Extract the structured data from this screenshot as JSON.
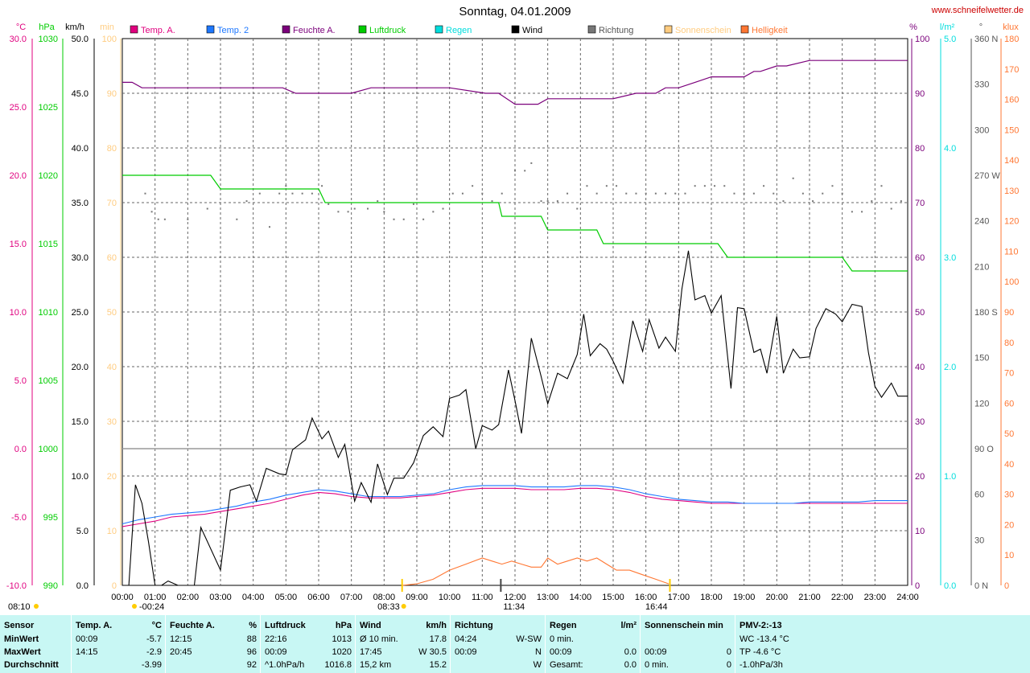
{
  "title": "Sonntag, 04.01.2009",
  "site": "www.schneifelwetter.de",
  "colors": {
    "temp_a": "#e0007f",
    "temp2": "#1e78ff",
    "feuchte": "#7b007b",
    "luftdruck": "#00cc00",
    "regen": "#00dddd",
    "wind": "#000000",
    "richtung": "#777777",
    "sonnenschein": "#ffcc80",
    "helligkeit": "#ff7733"
  },
  "legend": [
    {
      "label": "Temp. A.",
      "color": "#e0007f"
    },
    {
      "label": "Temp. 2",
      "color": "#1e78ff"
    },
    {
      "label": "Feuchte A.",
      "color": "#7b007b"
    },
    {
      "label": "Luftdruck",
      "color": "#00cc00"
    },
    {
      "label": "Regen",
      "color": "#00dddd"
    },
    {
      "label": "Wind",
      "color": "#000000"
    },
    {
      "label": "Richtung",
      "color": "#777777"
    },
    {
      "label": "Sonnenschein",
      "color": "#ffcc80"
    },
    {
      "label": "Helligkeit",
      "color": "#ff7733"
    }
  ],
  "axis_units": {
    "temp": "°C",
    "hpa": "hPa",
    "kmh": "km/h",
    "min": "min",
    "pct": "%",
    "lm2": "l/m²",
    "deg": "°",
    "klux": "klux"
  },
  "axes_left": {
    "temp": [
      "30.0",
      "25.0",
      "20.0",
      "15.0",
      "10.0",
      "5.0",
      "0.0",
      "-5.0",
      "-10.0"
    ],
    "hpa": [
      "1030",
      "1025",
      "1020",
      "1015",
      "1010",
      "1005",
      "1000",
      "995",
      "990"
    ],
    "kmh": [
      "50.0",
      "45.0",
      "40.0",
      "35.0",
      "30.0",
      "25.0",
      "20.0",
      "15.0",
      "10.0",
      "5.0",
      "0.0"
    ],
    "min": [
      "100",
      "90",
      "80",
      "70",
      "60",
      "50",
      "40",
      "30",
      "20",
      "10",
      "0"
    ]
  },
  "axes_right": {
    "pct": [
      "100",
      "90",
      "80",
      "70",
      "60",
      "50",
      "40",
      "30",
      "20",
      "10",
      "0"
    ],
    "lm2": [
      "5.0",
      "4.0",
      "3.0",
      "2.0",
      "1.0",
      "0.0"
    ],
    "deg": [
      "360 N",
      "330",
      "300",
      "270 W",
      "240",
      "210",
      "180 S",
      "150",
      "120",
      "90 O",
      "60",
      "30",
      "0 N"
    ],
    "klux": [
      "180",
      "170",
      "160",
      "150",
      "140",
      "130",
      "120",
      "110",
      "100",
      "90",
      "80",
      "70",
      "60",
      "50",
      "40",
      "30",
      "20",
      "10",
      "0"
    ]
  },
  "x_ticks": [
    "00:00",
    "01:00",
    "02:00",
    "03:00",
    "04:00",
    "05:00",
    "06:00",
    "07:00",
    "08:00",
    "09:00",
    "10:00",
    "11:00",
    "12:00",
    "13:00",
    "14:00",
    "15:00",
    "16:00",
    "17:00",
    "18:00",
    "19:00",
    "20:00",
    "21:00",
    "22:00",
    "23:00",
    "24:00"
  ],
  "markers": {
    "sunrise": "08:33",
    "noon": "11:34",
    "sunset": "16:44",
    "min_marker": "-00:24",
    "daylight": "08:10"
  },
  "chart_data": {
    "type": "line",
    "x_unit": "hour",
    "xlim": [
      0,
      24
    ],
    "series": [
      {
        "name": "Temp. A.",
        "unit": "°C",
        "ylim": [
          -10,
          30
        ],
        "x": [
          0,
          0.5,
          1,
          1.5,
          2,
          2.5,
          3,
          3.5,
          4,
          4.5,
          5,
          5.5,
          6,
          6.5,
          7,
          7.5,
          8,
          8.5,
          9,
          9.5,
          10,
          10.5,
          11,
          11.5,
          12,
          12.5,
          13,
          13.5,
          14,
          14.5,
          15,
          15.5,
          16,
          16.5,
          17,
          17.5,
          18,
          18.5,
          19,
          19.5,
          20,
          20.5,
          21,
          21.5,
          22,
          22.5,
          23,
          23.5,
          24
        ],
        "y": [
          -5.7,
          -5.5,
          -5.3,
          -5.0,
          -4.9,
          -4.8,
          -4.6,
          -4.4,
          -4.2,
          -4.0,
          -3.7,
          -3.4,
          -3.2,
          -3.3,
          -3.5,
          -3.6,
          -3.6,
          -3.6,
          -3.5,
          -3.4,
          -3.2,
          -3.0,
          -2.9,
          -2.9,
          -2.9,
          -3.0,
          -3.0,
          -3.0,
          -2.9,
          -2.9,
          -3.0,
          -3.2,
          -3.5,
          -3.7,
          -3.8,
          -3.9,
          -4.0,
          -4.0,
          -4.0,
          -4.0,
          -4.0,
          -4.0,
          -4.0,
          -4.0,
          -4.0,
          -4.0,
          -4.0,
          -4.0,
          -4.0
        ]
      },
      {
        "name": "Temp. 2",
        "unit": "°C",
        "ylim": [
          -10,
          30
        ],
        "x": [
          0,
          0.5,
          1,
          1.5,
          2,
          2.5,
          3,
          3.5,
          4,
          4.5,
          5,
          5.5,
          6,
          6.5,
          7,
          7.5,
          8,
          8.5,
          9,
          9.5,
          10,
          10.5,
          11,
          11.5,
          12,
          12.5,
          13,
          13.5,
          14,
          14.5,
          15,
          15.5,
          16,
          16.5,
          17,
          17.5,
          18,
          18.5,
          19,
          19.5,
          20,
          20.5,
          21,
          21.5,
          22,
          22.5,
          23,
          23.5,
          24
        ],
        "y": [
          -5.5,
          -5.2,
          -5.0,
          -4.8,
          -4.7,
          -4.6,
          -4.4,
          -4.2,
          -3.9,
          -3.7,
          -3.4,
          -3.2,
          -3.0,
          -3.1,
          -3.3,
          -3.5,
          -3.5,
          -3.5,
          -3.4,
          -3.3,
          -3.0,
          -2.8,
          -2.7,
          -2.7,
          -2.7,
          -2.8,
          -2.8,
          -2.8,
          -2.7,
          -2.7,
          -2.8,
          -3.0,
          -3.3,
          -3.5,
          -3.7,
          -3.8,
          -3.9,
          -3.9,
          -4.0,
          -4.0,
          -4.0,
          -4.0,
          -3.9,
          -3.9,
          -3.9,
          -3.9,
          -3.8,
          -3.8,
          -3.8
        ]
      },
      {
        "name": "Feuchte A.",
        "unit": "%",
        "ylim": [
          0,
          100
        ],
        "x": [
          0,
          0.3,
          0.6,
          1.0,
          1.5,
          2,
          3,
          4,
          4.9,
          5.3,
          6,
          7,
          7.6,
          8,
          9,
          10,
          11.1,
          11.5,
          12,
          12.3,
          12.7,
          13,
          14,
          15,
          15.7,
          16,
          16.3,
          16.6,
          17,
          17.5,
          18,
          18.5,
          19,
          19.3,
          19.5,
          20,
          20.3,
          21,
          22,
          23,
          24
        ],
        "y": [
          92,
          92,
          91,
          91,
          91,
          91,
          91,
          91,
          91,
          90,
          90,
          90,
          91,
          91,
          91,
          91,
          90,
          90,
          88,
          88,
          88,
          89,
          89,
          89,
          90,
          90,
          90,
          91,
          91,
          92,
          93,
          93,
          93,
          94,
          94,
          95,
          95,
          96,
          96,
          96,
          96
        ]
      },
      {
        "name": "Luftdruck",
        "unit": "hPa",
        "ylim": [
          990,
          1030
        ],
        "x": [
          0,
          2.7,
          3,
          6,
          6.2,
          11.5,
          11.6,
          12.8,
          13,
          14.5,
          14.7,
          18.2,
          18.5,
          22,
          22.3,
          24
        ],
        "y": [
          1020,
          1020,
          1019,
          1019,
          1018,
          1018,
          1017,
          1017,
          1016,
          1016,
          1015,
          1015,
          1014,
          1014,
          1013,
          1013
        ]
      },
      {
        "name": "Wind",
        "unit": "km/h",
        "ylim": [
          0,
          50
        ],
        "x": [
          0,
          0.2,
          0.4,
          0.6,
          0.8,
          1.0,
          1.2,
          1.4,
          1.7,
          2.0,
          2.2,
          2.4,
          3.0,
          3.3,
          3.6,
          3.9,
          4.1,
          4.4,
          4.8,
          5.0,
          5.2,
          5.6,
          5.8,
          6.1,
          6.3,
          6.6,
          6.8,
          7.1,
          7.3,
          7.6,
          7.8,
          8.1,
          8.3,
          8.6,
          8.9,
          9.2,
          9.5,
          9.8,
          10.0,
          10.3,
          10.5,
          10.8,
          11.0,
          11.3,
          11.5,
          11.8,
          12.0,
          12.2,
          12.5,
          12.8,
          13.0,
          13.3,
          13.6,
          13.9,
          14.1,
          14.3,
          14.6,
          14.8,
          15.0,
          15.3,
          15.6,
          15.9,
          16.1,
          16.4,
          16.6,
          16.9,
          17.1,
          17.3,
          17.5,
          17.8,
          18.0,
          18.3,
          18.6,
          18.8,
          19.0,
          19.3,
          19.5,
          19.7,
          20.0,
          20.2,
          20.5,
          20.7,
          21.0,
          21.2,
          21.5,
          21.8,
          22.0,
          22.3,
          22.6,
          22.8,
          23.0,
          23.2,
          23.5,
          23.7,
          24.0
        ],
        "y": [
          0,
          0,
          9.2,
          7.5,
          4,
          0,
          0,
          0.4,
          0,
          0,
          0,
          5.3,
          1.4,
          8.7,
          9,
          9.2,
          7.7,
          10.7,
          10.2,
          10.1,
          12.4,
          13.3,
          15.3,
          13.4,
          14.1,
          11.7,
          12.9,
          7.7,
          9.4,
          7.6,
          11.1,
          8.3,
          9.8,
          9.8,
          11.2,
          13.7,
          14.5,
          13.6,
          17.1,
          17.4,
          17.9,
          12.5,
          14.6,
          14.2,
          14.7,
          19.7,
          16.9,
          13.9,
          22.6,
          19.1,
          16.6,
          19.4,
          18.9,
          21.1,
          24.8,
          21.0,
          22.1,
          21.6,
          20.5,
          18.5,
          24.2,
          21.4,
          24.3,
          21.7,
          22.7,
          21.4,
          27.1,
          30.6,
          26.1,
          26.5,
          24.9,
          26.5,
          18.0,
          25.4,
          25.3,
          21.3,
          21.6,
          19.4,
          24.6,
          19.4,
          21.6,
          20.8,
          20.9,
          23.5,
          25.3,
          24.8,
          24.1,
          25.7,
          25.5,
          21.3,
          18.2,
          17.2,
          18.5,
          17.3,
          17.3
        ]
      },
      {
        "name": "Richtung",
        "unit": "°",
        "ylim": [
          0,
          360
        ],
        "style": "dots",
        "x": [
          0.7,
          0.9,
          1.1,
          1.3,
          2.0,
          2.6,
          3.5,
          3.8,
          4.2,
          4.5,
          4.8,
          5.0,
          5.2,
          5.5,
          5.8,
          6.1,
          6.3,
          6.6,
          6.9,
          7.1,
          7.5,
          7.8,
          8.0,
          8.3,
          8.6,
          8.9,
          9.2,
          9.5,
          9.8,
          10.1,
          10.4,
          10.7,
          11.0,
          11.3,
          11.6,
          12.0,
          12.3,
          12.5,
          12.8,
          13.0,
          13.3,
          13.6,
          13.9,
          14.2,
          14.5,
          14.8,
          15.1,
          15.4,
          15.7,
          16.0,
          16.3,
          16.6,
          16.9,
          17.2,
          17.5,
          17.8,
          18.1,
          18.4,
          18.7,
          19.0,
          19.3,
          19.6,
          19.9,
          20.2,
          20.5,
          20.8,
          21.1,
          21.4,
          21.7,
          22.0,
          22.3,
          22.6,
          22.9,
          23.2,
          23.5,
          23.8
        ],
        "y": [
          258,
          246,
          241,
          241,
          241,
          248,
          241,
          253,
          258,
          236,
          258,
          263,
          258,
          258,
          258,
          263,
          251,
          246,
          246,
          248,
          248,
          253,
          246,
          241,
          241,
          251,
          241,
          246,
          248,
          258,
          258,
          263,
          258,
          253,
          258,
          273,
          273,
          278,
          253,
          253,
          253,
          258,
          248,
          263,
          258,
          263,
          263,
          258,
          258,
          258,
          258,
          258,
          258,
          258,
          263,
          263,
          263,
          263,
          258,
          258,
          258,
          263,
          258,
          253,
          268,
          258,
          253,
          258,
          263,
          258,
          246,
          246,
          253,
          263,
          248,
          253
        ]
      },
      {
        "name": "Helligkeit",
        "unit": "klux",
        "ylim": [
          0,
          180
        ],
        "x": [
          8.55,
          9,
          9.5,
          10,
          10.5,
          11,
          11.3,
          11.6,
          11.9,
          12.2,
          12.5,
          12.8,
          13,
          13.3,
          13.6,
          13.9,
          14.2,
          14.5,
          14.8,
          15.1,
          15.5,
          15.9,
          16.3,
          16.7
        ],
        "y": [
          0,
          0.5,
          2,
          5,
          7,
          9,
          8,
          7,
          8,
          7,
          6,
          6,
          9,
          7,
          8,
          9,
          8,
          9,
          7,
          5,
          5,
          3.5,
          2,
          0.5
        ]
      }
    ]
  },
  "stats": {
    "sensor": {
      "header": "Sensor",
      "rows": [
        "MinWert",
        "MaxWert",
        "Durchschnitt"
      ]
    },
    "temp": {
      "header": "Temp. A.",
      "unit": "°C",
      "rows": [
        [
          "00:09",
          "-5.7"
        ],
        [
          "14:15",
          "-2.9"
        ],
        [
          "",
          "-3.99"
        ]
      ]
    },
    "feuchte": {
      "header": "Feuchte A.",
      "unit": "%",
      "rows": [
        [
          "12:15",
          "88"
        ],
        [
          "20:45",
          "96"
        ],
        [
          "",
          "92"
        ]
      ]
    },
    "luftdruck": {
      "header": "Luftdruck",
      "unit": "hPa",
      "rows": [
        [
          "22:16",
          "1013"
        ],
        [
          "00:09",
          "1020"
        ],
        [
          "^1.0hPa/h",
          "1016.8"
        ]
      ]
    },
    "wind": {
      "header": "Wind",
      "unit": "km/h",
      "rows": [
        [
          "Ø 10 min.",
          "17.8"
        ],
        [
          "17:45",
          "W 30.5"
        ],
        [
          "15,2 km",
          "15.2"
        ]
      ]
    },
    "richtung": {
      "header": "Richtung",
      "unit": "",
      "rows": [
        [
          "04:24",
          "W-SW"
        ],
        [
          "00:09",
          "N"
        ],
        [
          "",
          "W"
        ]
      ]
    },
    "regen": {
      "header": "Regen",
      "unit": "l/m²",
      "rows": [
        [
          "0 min.",
          ""
        ],
        [
          "00:09",
          "0.0"
        ],
        [
          "Gesamt:",
          "0.0"
        ]
      ]
    },
    "sonne": {
      "header": "Sonnenschein min",
      "unit": "",
      "rows": [
        [
          "",
          ""
        ],
        [
          "00:09",
          "0"
        ],
        [
          "0 min.",
          "0"
        ]
      ]
    },
    "pmv": {
      "header": "PMV-2:-13",
      "unit": "",
      "rows": [
        [
          "WC -13.4 °C",
          ""
        ],
        [
          "TP -4.6 °C",
          ""
        ],
        [
          "-1.0hPa/3h",
          ""
        ]
      ]
    }
  }
}
